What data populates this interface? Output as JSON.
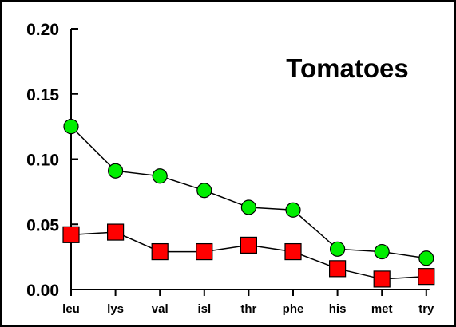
{
  "chart_data": {
    "type": "line",
    "title": "Tomatoes",
    "categories": [
      "leu",
      "lys",
      "val",
      "isl",
      "thr",
      "phe",
      "his",
      "met",
      "try"
    ],
    "ylim": [
      0,
      0.2
    ],
    "yticks": [
      "0.00",
      "0.05",
      "0.10",
      "0.15",
      "0.20"
    ],
    "grid": false,
    "series": [
      {
        "values": [
          0.125,
          0.091,
          0.087,
          0.076,
          0.063,
          0.061,
          0.031,
          0.029,
          0.024
        ],
        "color": "#00ee00",
        "marker": "circle"
      },
      {
        "values": [
          0.042,
          0.044,
          0.029,
          0.029,
          0.034,
          0.029,
          0.016,
          0.008,
          0.01
        ],
        "color": "#ff0000",
        "marker": "square"
      }
    ]
  }
}
